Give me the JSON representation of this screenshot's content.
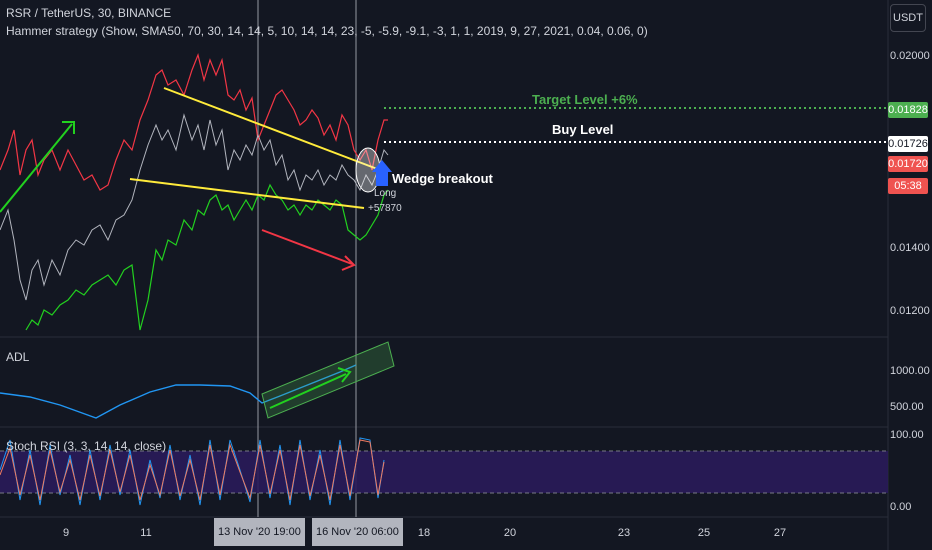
{
  "header": {
    "symbol_line": "RSR / TetherUS, 30, BINANCE",
    "strategy_line": "Hammer strategy (Show, SMA50, 70, 30, 14, 14, 5, 10, 14, 14, 23, -5, -5.9, -9.1, -3, 1, 1, 2019, 9, 27, 2021, 0.04, 0.06, 0)"
  },
  "currency_button": "USDT",
  "price_axis": {
    "ticks": [
      "0.02000",
      "0.01400",
      "0.01200"
    ],
    "tags": [
      {
        "value": "0.01828",
        "bg": "#4caf50",
        "color": "#ffffff"
      },
      {
        "value": "0.01726",
        "bg": "#ffffff",
        "color": "#131722"
      },
      {
        "value": "0.01720",
        "bg": "#ef5350",
        "color": "#ffffff"
      },
      {
        "value": "05:38",
        "bg": "#ef5350",
        "color": "#ffffff"
      }
    ]
  },
  "adl_pane": {
    "label": "ADL",
    "ticks": [
      "1000.00",
      "500.00"
    ]
  },
  "rsi_pane": {
    "label": "Stoch RSI (3, 3, 14, 14, close)",
    "ticks": [
      "100.00",
      "0.00"
    ]
  },
  "time_axis": {
    "ticks": [
      "9",
      "11",
      "18",
      "20",
      "23",
      "25",
      "27"
    ],
    "crosshair_labels": [
      "13 Nov '20   19:00",
      "16 Nov '20   06:00"
    ]
  },
  "annotations": {
    "target_level": "Target Level +6%",
    "buy_level": "Buy Level",
    "wedge": "Wedge breakout",
    "long_label": "Long",
    "long_qty": "+57870"
  },
  "colors": {
    "background": "#131722",
    "price_red": "#f23645",
    "price_white": "#b2b5be",
    "price_green": "#22d11f",
    "trendline": "#ffeb3b",
    "adl": "#2196f3",
    "rsi_fill": "#2a1b5a",
    "target": "#4caf50"
  },
  "chart_data": {
    "type": "line",
    "series": [],
    "ylabel": "",
    "xlabel": "",
    "y_ticks": [
      0.02,
      0.014,
      0.012
    ],
    "target_level_price": 0.01828,
    "buy_level_price": 0.01726,
    "last_price": 0.0172
  }
}
